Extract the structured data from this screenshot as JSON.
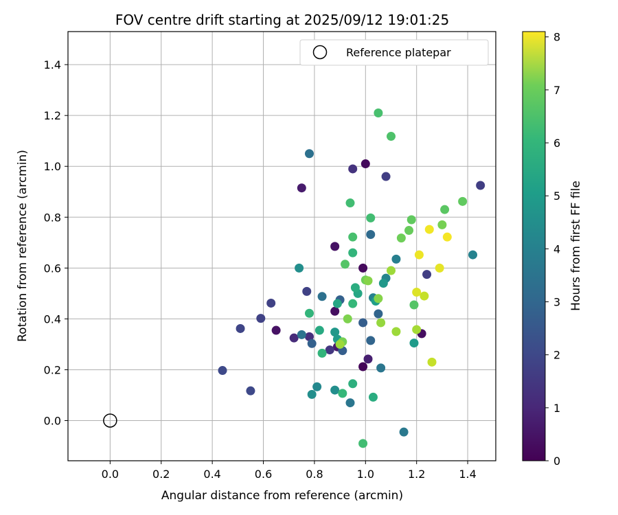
{
  "chart_data": {
    "type": "scatter",
    "title": "FOV centre drift starting at 2025/09/12 19:01:25",
    "xlabel": "Angular distance from reference (arcmin)",
    "ylabel": "Rotation from reference (arcmin)",
    "xlim": [
      -0.165,
      1.51
    ],
    "ylim": [
      -0.158,
      1.53
    ],
    "xticks": [
      "0.0",
      "0.2",
      "0.4",
      "0.6",
      "0.8",
      "1.0",
      "1.2",
      "1.4"
    ],
    "yticks": [
      "0.0",
      "0.2",
      "0.4",
      "0.6",
      "0.8",
      "1.0",
      "1.2",
      "1.4"
    ],
    "grid": true,
    "legend": {
      "position": "top-right",
      "label": "Reference platepar"
    },
    "reference_point": {
      "x": 0.0,
      "y": 0.0
    },
    "colorbar": {
      "label": "Hours from first FF file",
      "range": [
        0,
        8.1
      ],
      "ticks": [
        "0",
        "1",
        "2",
        "3",
        "4",
        "5",
        "6",
        "7",
        "8"
      ],
      "colormap": "viridis"
    },
    "points": [
      {
        "x": 1.0,
        "y": 1.01,
        "c": 0.2
      },
      {
        "x": 0.75,
        "y": 0.915,
        "c": 0.6
      },
      {
        "x": 0.88,
        "y": 0.685,
        "c": 0.4
      },
      {
        "x": 0.99,
        "y": 0.6,
        "c": 0.2
      },
      {
        "x": 0.88,
        "y": 0.43,
        "c": 0.3
      },
      {
        "x": 0.65,
        "y": 0.355,
        "c": 0.4
      },
      {
        "x": 0.99,
        "y": 0.212,
        "c": 0.1
      },
      {
        "x": 1.22,
        "y": 0.342,
        "c": 0.3
      },
      {
        "x": 1.01,
        "y": 0.242,
        "c": 0.7
      },
      {
        "x": 0.89,
        "y": 0.29,
        "c": 0.6
      },
      {
        "x": 0.95,
        "y": 0.99,
        "c": 1.2
      },
      {
        "x": 1.08,
        "y": 0.96,
        "c": 1.5
      },
      {
        "x": 1.45,
        "y": 0.925,
        "c": 1.5
      },
      {
        "x": 1.24,
        "y": 0.575,
        "c": 1.5
      },
      {
        "x": 0.77,
        "y": 0.508,
        "c": 1.6
      },
      {
        "x": 0.63,
        "y": 0.462,
        "c": 1.6
      },
      {
        "x": 0.59,
        "y": 0.402,
        "c": 1.6
      },
      {
        "x": 0.51,
        "y": 0.362,
        "c": 1.7
      },
      {
        "x": 0.72,
        "y": 0.325,
        "c": 1.0
      },
      {
        "x": 0.78,
        "y": 0.33,
        "c": 1.1
      },
      {
        "x": 0.86,
        "y": 0.278,
        "c": 1.3
      },
      {
        "x": 0.44,
        "y": 0.197,
        "c": 1.8
      },
      {
        "x": 0.55,
        "y": 0.117,
        "c": 1.8
      },
      {
        "x": 0.79,
        "y": 0.303,
        "c": 2.5
      },
      {
        "x": 0.9,
        "y": 0.475,
        "c": 2.5
      },
      {
        "x": 0.91,
        "y": 0.275,
        "c": 2.4
      },
      {
        "x": 0.99,
        "y": 0.385,
        "c": 2.4
      },
      {
        "x": 1.02,
        "y": 0.315,
        "c": 2.6
      },
      {
        "x": 1.05,
        "y": 0.42,
        "c": 2.6
      },
      {
        "x": 1.02,
        "y": 0.732,
        "c": 2.8
      },
      {
        "x": 0.78,
        "y": 1.05,
        "c": 3.0
      },
      {
        "x": 0.83,
        "y": 0.488,
        "c": 3.0
      },
      {
        "x": 0.75,
        "y": 0.338,
        "c": 3.1
      },
      {
        "x": 1.06,
        "y": 0.207,
        "c": 3.2
      },
      {
        "x": 0.94,
        "y": 0.07,
        "c": 3.2
      },
      {
        "x": 1.15,
        "y": -0.045,
        "c": 3.3
      },
      {
        "x": 1.12,
        "y": 0.635,
        "c": 3.5
      },
      {
        "x": 1.42,
        "y": 0.652,
        "c": 3.6
      },
      {
        "x": 1.03,
        "y": 0.483,
        "c": 3.6
      },
      {
        "x": 1.08,
        "y": 0.56,
        "c": 3.7
      },
      {
        "x": 0.81,
        "y": 0.133,
        "c": 3.8
      },
      {
        "x": 0.79,
        "y": 0.103,
        "c": 4.0
      },
      {
        "x": 0.88,
        "y": 0.12,
        "c": 4.0
      },
      {
        "x": 0.74,
        "y": 0.6,
        "c": 4.0
      },
      {
        "x": 0.88,
        "y": 0.348,
        "c": 4.3
      },
      {
        "x": 0.89,
        "y": 0.32,
        "c": 4.4
      },
      {
        "x": 1.07,
        "y": 0.54,
        "c": 4.3
      },
      {
        "x": 1.04,
        "y": 0.47,
        "c": 4.5
      },
      {
        "x": 1.19,
        "y": 0.305,
        "c": 4.4
      },
      {
        "x": 0.97,
        "y": 0.5,
        "c": 4.8
      },
      {
        "x": 0.89,
        "y": 0.46,
        "c": 4.8
      },
      {
        "x": 0.82,
        "y": 0.355,
        "c": 4.9
      },
      {
        "x": 0.96,
        "y": 0.523,
        "c": 5.0
      },
      {
        "x": 1.03,
        "y": 0.092,
        "c": 5.0
      },
      {
        "x": 0.95,
        "y": 0.145,
        "c": 5.1
      },
      {
        "x": 0.78,
        "y": 0.422,
        "c": 5.3
      },
      {
        "x": 0.83,
        "y": 0.265,
        "c": 5.3
      },
      {
        "x": 0.95,
        "y": 0.66,
        "c": 5.3
      },
      {
        "x": 0.95,
        "y": 0.46,
        "c": 5.4
      },
      {
        "x": 0.91,
        "y": 0.107,
        "c": 5.4
      },
      {
        "x": 0.99,
        "y": -0.09,
        "c": 5.6
      },
      {
        "x": 0.94,
        "y": 0.856,
        "c": 5.6
      },
      {
        "x": 1.02,
        "y": 0.797,
        "c": 5.6
      },
      {
        "x": 0.95,
        "y": 0.722,
        "c": 5.7
      },
      {
        "x": 1.05,
        "y": 1.21,
        "c": 5.7
      },
      {
        "x": 1.1,
        "y": 1.118,
        "c": 5.8
      },
      {
        "x": 0.92,
        "y": 0.615,
        "c": 5.9
      },
      {
        "x": 1.19,
        "y": 0.455,
        "c": 5.9
      },
      {
        "x": 1.31,
        "y": 0.83,
        "c": 6.0
      },
      {
        "x": 1.38,
        "y": 0.862,
        "c": 6.1
      },
      {
        "x": 1.18,
        "y": 0.79,
        "c": 6.1
      },
      {
        "x": 1.17,
        "y": 0.748,
        "c": 6.2
      },
      {
        "x": 1.0,
        "y": 0.553,
        "c": 6.3
      },
      {
        "x": 1.14,
        "y": 0.718,
        "c": 6.3
      },
      {
        "x": 1.3,
        "y": 0.77,
        "c": 6.4
      },
      {
        "x": 0.91,
        "y": 0.31,
        "c": 6.4
      },
      {
        "x": 0.93,
        "y": 0.4,
        "c": 6.5
      },
      {
        "x": 1.01,
        "y": 0.55,
        "c": 6.6
      },
      {
        "x": 1.05,
        "y": 0.48,
        "c": 6.6
      },
      {
        "x": 1.06,
        "y": 0.385,
        "c": 6.8
      },
      {
        "x": 1.1,
        "y": 0.59,
        "c": 6.9
      },
      {
        "x": 1.12,
        "y": 0.35,
        "c": 6.9
      },
      {
        "x": 1.2,
        "y": 0.358,
        "c": 7.0
      },
      {
        "x": 0.9,
        "y": 0.3,
        "c": 6.9
      },
      {
        "x": 1.26,
        "y": 0.23,
        "c": 7.4
      },
      {
        "x": 1.23,
        "y": 0.49,
        "c": 7.4
      },
      {
        "x": 1.2,
        "y": 0.505,
        "c": 7.7
      },
      {
        "x": 1.29,
        "y": 0.6,
        "c": 7.8
      },
      {
        "x": 1.21,
        "y": 0.652,
        "c": 7.9
      },
      {
        "x": 1.25,
        "y": 0.752,
        "c": 7.95
      },
      {
        "x": 1.32,
        "y": 0.722,
        "c": 8.0
      }
    ]
  }
}
